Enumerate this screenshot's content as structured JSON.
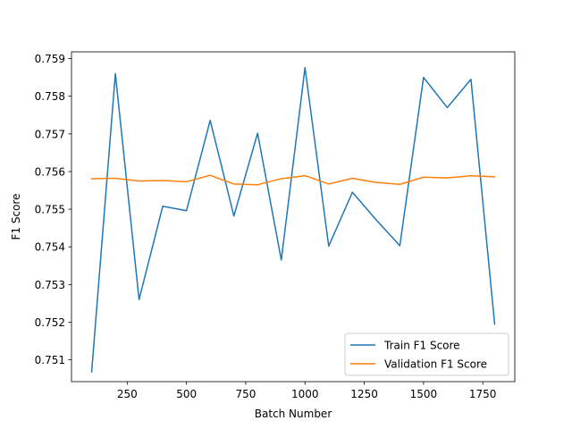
{
  "chart_data": {
    "type": "line",
    "title": "",
    "xlabel": "Batch Number",
    "ylabel": "F1 Score",
    "xlim": [
      15,
      1885
    ],
    "ylim": [
      0.75042,
      0.75918
    ],
    "xticks": [
      250,
      500,
      750,
      1000,
      1250,
      1500,
      1750
    ],
    "xtick_labels": [
      "250",
      "500",
      "750",
      "1000",
      "1250",
      "1500",
      "1750"
    ],
    "yticks": [
      0.751,
      0.752,
      0.753,
      0.754,
      0.755,
      0.756,
      0.757,
      0.758,
      0.759
    ],
    "ytick_labels": [
      "0.751",
      "0.752",
      "0.753",
      "0.754",
      "0.755",
      "0.756",
      "0.757",
      "0.758",
      "0.759"
    ],
    "grid": false,
    "legend_position": "lower-right",
    "x": [
      100,
      200,
      300,
      400,
      500,
      600,
      700,
      800,
      900,
      1000,
      1100,
      1200,
      1300,
      1400,
      1500,
      1600,
      1700,
      1800
    ],
    "series": [
      {
        "name": "Train F1 Score",
        "color": "#1f77b4",
        "values": [
          0.75068,
          0.7586,
          0.7526,
          0.75508,
          0.75496,
          0.75736,
          0.75482,
          0.75702,
          0.75365,
          0.75876,
          0.75402,
          0.75545,
          0.75472,
          0.75403,
          0.7585,
          0.7577,
          0.75845,
          0.75195
        ]
      },
      {
        "name": "Validation F1 Score",
        "color": "#ff7f0e",
        "values": [
          0.75581,
          0.75582,
          0.75575,
          0.75576,
          0.75573,
          0.7559,
          0.75567,
          0.75565,
          0.75581,
          0.75589,
          0.75567,
          0.75582,
          0.75571,
          0.75566,
          0.75585,
          0.75583,
          0.75589,
          0.75586
        ]
      }
    ]
  }
}
